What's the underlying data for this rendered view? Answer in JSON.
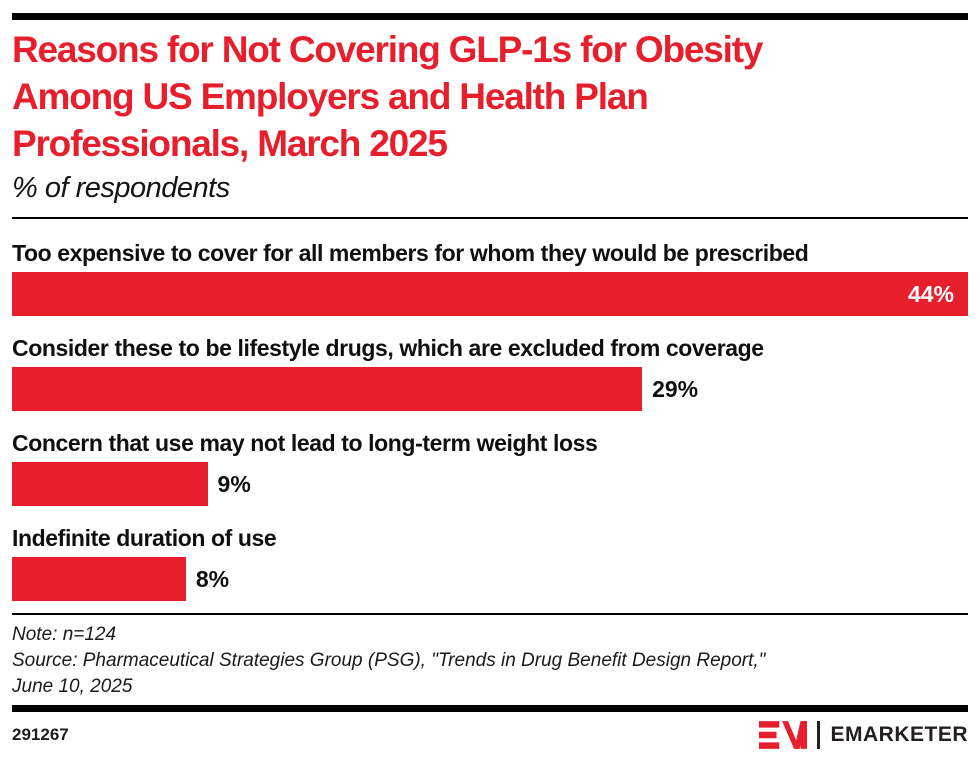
{
  "page": {
    "background": "#ffffff",
    "accent_red": "#e71f2d",
    "text_black": "#0f0f0f"
  },
  "header": {
    "title_lines": [
      "Reasons for Not Covering GLP-1s for Obesity",
      "Among US Employers and Health Plan",
      "Professionals, March 2025"
    ],
    "subtitle": "% of respondents"
  },
  "chart_data": {
    "type": "bar",
    "orientation": "horizontal",
    "title": "Reasons for Not Covering GLP-1s for Obesity Among US Employers and Health Plan Professionals, March 2025",
    "unit_label": "% of respondents",
    "categories": [
      "Too expensive to cover for all members for whom they would be prescribed",
      "Consider these to be lifestyle drugs, which are excluded from coverage",
      "Concern that use may not lead to long-term weight loss",
      "Indefinite duration of use"
    ],
    "values": [
      44,
      29,
      9,
      8
    ],
    "value_labels": [
      "44%",
      "29%",
      "9%",
      "8%"
    ],
    "scale_max": 44,
    "xlim": [
      0,
      44
    ],
    "bar_color": "#e71f2d",
    "value_label_inside": [
      true,
      false,
      false,
      false
    ],
    "grid": false,
    "legend": false
  },
  "notes": {
    "note": "Note: n=124",
    "source_lines": [
      "Source: Pharmaceutical Strategies Group (PSG), \"Trends in Drug Benefit Design Report,\"",
      "June 10, 2025"
    ]
  },
  "footer": {
    "chart_id": "291267",
    "brand_wordmark": "EMARKETER"
  }
}
